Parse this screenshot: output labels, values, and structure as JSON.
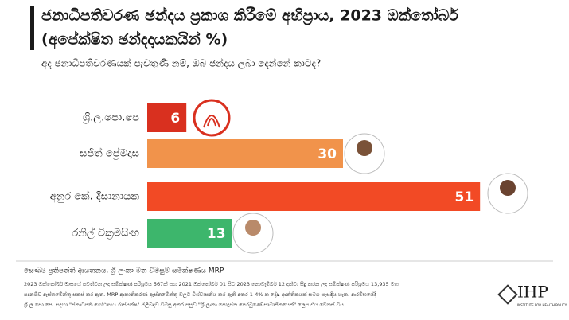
{
  "chart_data": {
    "type": "bar",
    "orientation": "horizontal",
    "title": [
      "ජනාධිපතිවරණ ඡන්දය ප්‍රකාශ කිරීමේ අභිප්‍රාය, 2023 ඔක්තෝබර්",
      "(අපේක්ෂිත ඡන්දදායකයින් %)"
    ],
    "subtitle": "අද ජනාධිපතිවරණයක් පැවතුණි නම්, ඔබ ඡන්දය ලබා දෙන්නේ කාටද?",
    "categories": [
      "ශ්‍රී.ල.පො.පෙ",
      "සජිත් ප්‍රේමදාස",
      "අනුර කේ. දිසානායක",
      "රනිල් වික්‍රමසිංහ"
    ],
    "values": [
      6,
      30,
      51,
      13
    ],
    "colors": [
      "#d9301f",
      "#f1934b",
      "#f24a25",
      "#3db66c"
    ],
    "source": "සෞඛ්‍ය ප්‍රතිපත්ති ආයතනය, ශ්‍රී ලංකා මත විමසුම් සමීක්ෂණය MRP",
    "notes": [
      "2023 ඔක්තෝබර් මාසයේ පවත්වන ලද සමීක්ෂණ පරිශ්‍රමය 567ක් සහ 2021 ඔක්තෝබර් 01 සිට 2023 නොවැම්බර් 12 දක්වා සිදු කරන ලද සමීක්ෂණ පරිශ්‍රමය 13,935 මත",
      "පදනම්ව ඇස්තමේන්තු සකස් කර ඇත. MRP ආකෘතිකරණ ඇස්තමේන්තු වලට විශ්වාසනීය කර ඇති අතර 1-4% ක දෝෂ ආන්තිකයක් සමග සැසඳිය හැක. ආරම්භයේදී",
      "ශ්‍රී.ල.පො.පෙ. සඳහා \"ජනාධිපති ගෝඨාභය රාජපක්ෂ\" පිළිබඳව විමසූ අතර පසුව \"ශ්‍රී ලංකා පොදුජන පෙරමුණේ සාමාජිකයෙක්\" ලෙස එය වෙනස් විය."
    ],
    "logo": "IHP",
    "logo_sub": "INSTITUTE FOR HEALTH POLICY"
  }
}
